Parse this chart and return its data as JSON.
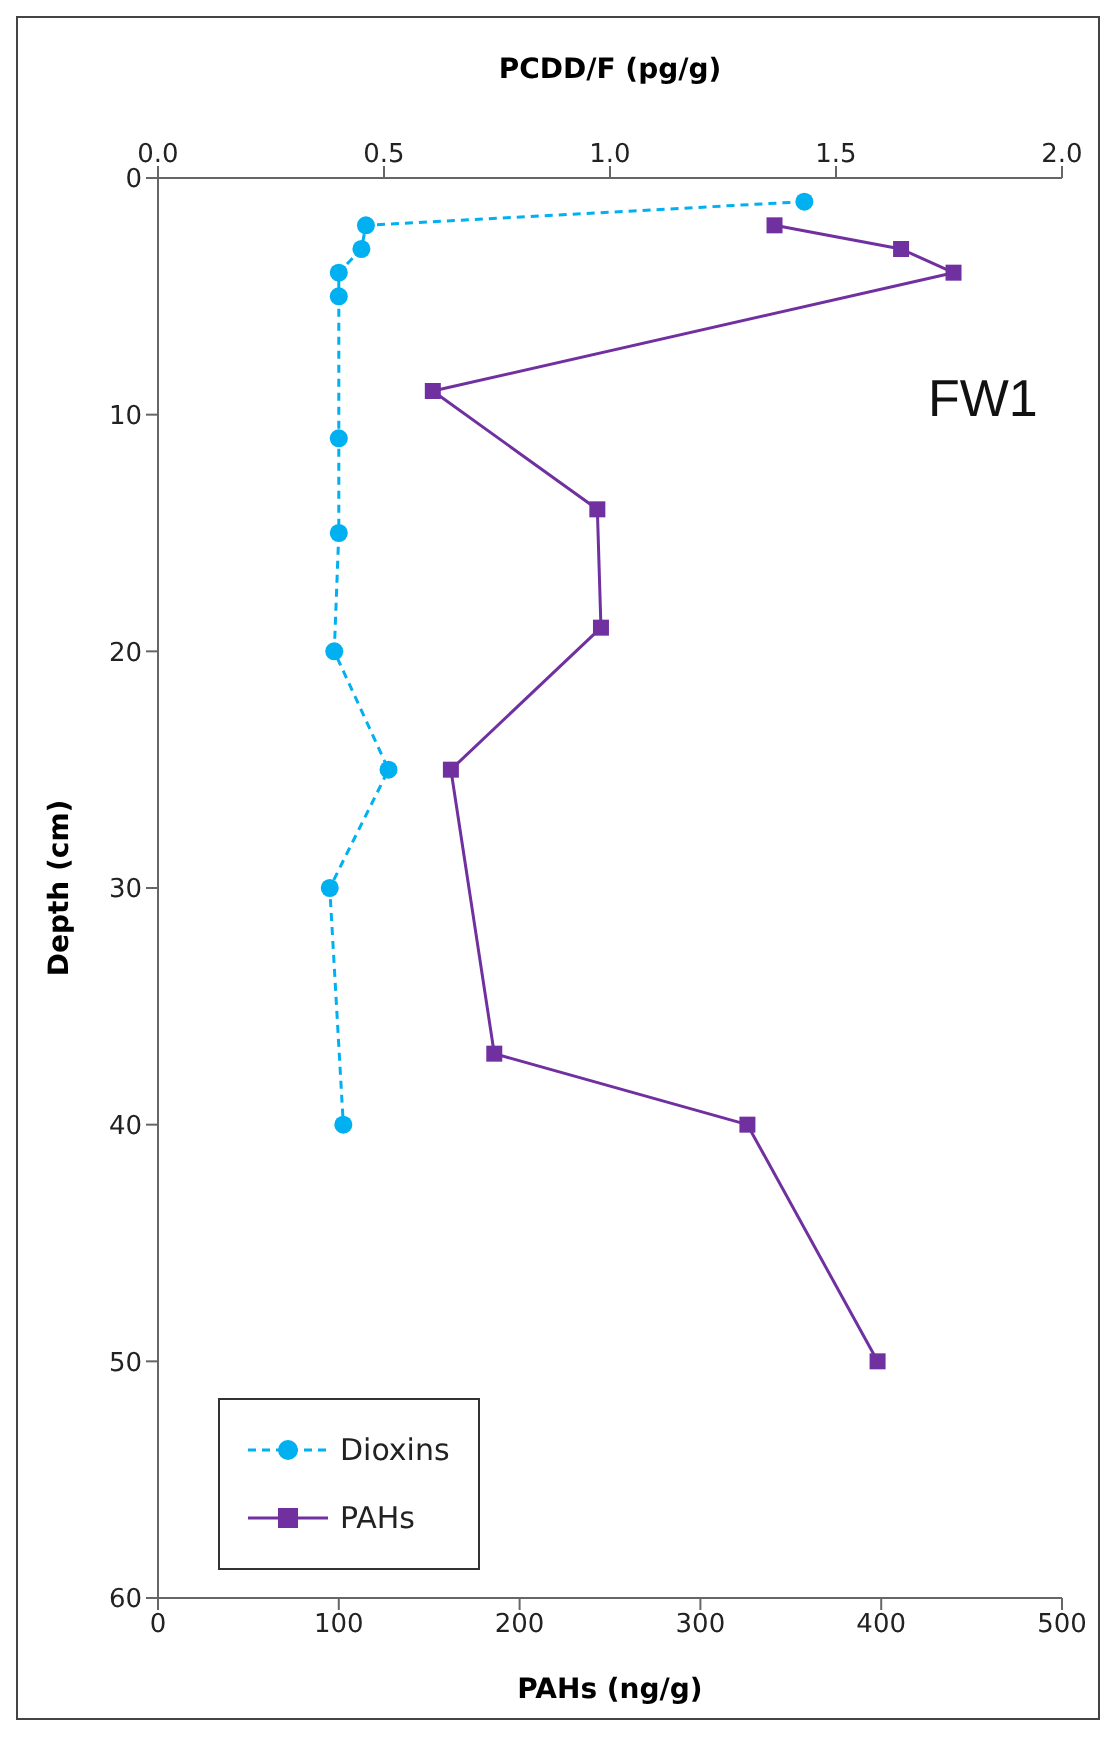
{
  "chart_data": {
    "type": "line",
    "xlabel": "PAHs (ng/g)",
    "x2label": "PCDD/F (pg/g)",
    "ylabel": "Depth (cm)",
    "annotations": [
      "FW1"
    ],
    "xlim": [
      0,
      500
    ],
    "xticks": [
      0,
      100,
      200,
      300,
      400,
      500
    ],
    "x2lim": [
      0,
      2
    ],
    "x2ticks": [
      {
        "value": 0,
        "label": "0.0"
      },
      0.5,
      {
        "value": 1,
        "label": "1.0"
      },
      1.5,
      {
        "value": 2,
        "label": "2.0"
      }
    ],
    "ylim": [
      60,
      0
    ],
    "yticks": [
      0,
      10,
      20,
      30,
      40,
      50,
      60
    ],
    "legend": "bottom left",
    "series": [
      {
        "name": "Dioxins",
        "color": "#00b0f0",
        "axis": "x2",
        "marker": "circle",
        "line_style": "dashed",
        "x": [
          1.43,
          0.46,
          0.45,
          0.4,
          0.4,
          0.4,
          0.4,
          0.39,
          0.51,
          0.38,
          0.41
        ],
        "values": [
          1,
          2,
          3,
          4,
          5,
          11,
          15,
          20,
          25,
          30,
          40
        ]
      },
      {
        "name": "PAHs",
        "color": "#7030a0",
        "marker": "square",
        "line_style": "solid",
        "x": [
          341,
          411,
          440,
          152,
          243,
          245,
          162,
          186,
          326,
          398
        ],
        "values": [
          2,
          3,
          4,
          9,
          14,
          19,
          25,
          37,
          40,
          50
        ]
      }
    ]
  }
}
